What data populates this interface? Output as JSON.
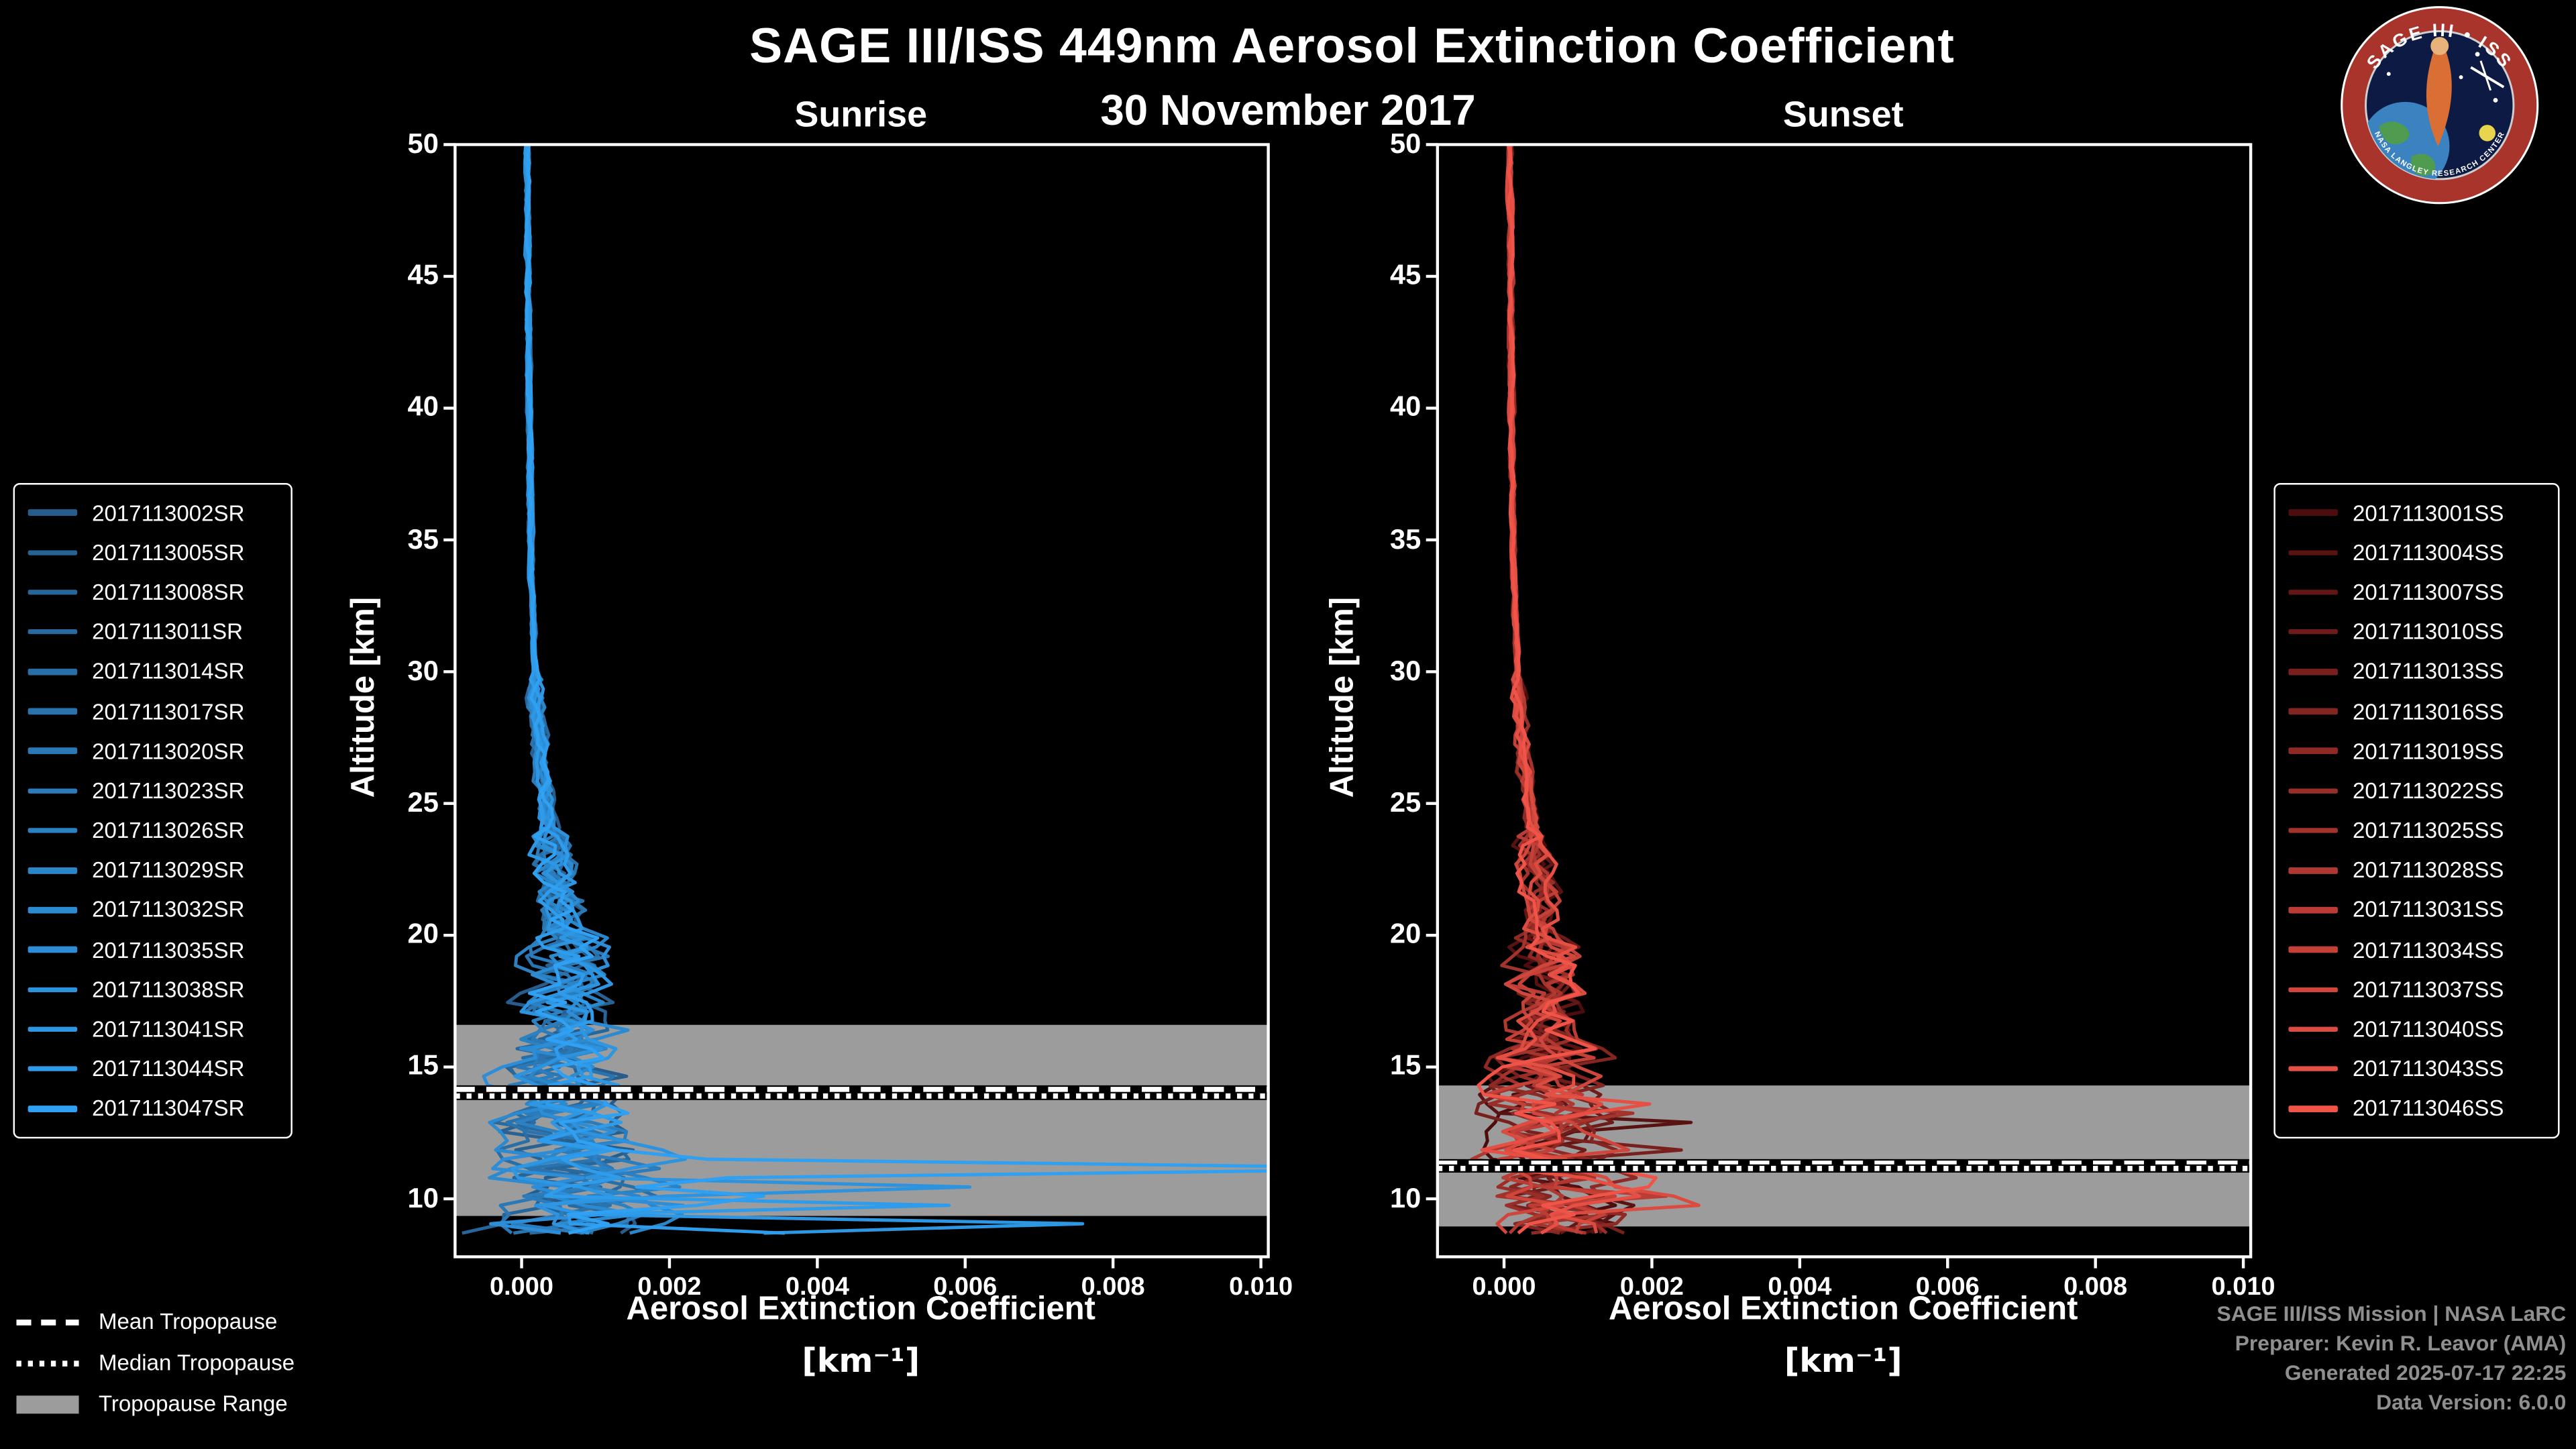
{
  "header": {
    "title": "SAGE III/ISS 449nm Aerosol Extinction Coefficient",
    "date": "30 November 2017"
  },
  "logo": {
    "title_text": "SAGE III • ISS",
    "subtitle_text": "NASA LANGLEY RESEARCH CENTER"
  },
  "footer": {
    "lines": [
      "SAGE III/ISS Mission | NASA LaRC",
      "Preparer: Kevin R. Leavor (AMA)",
      "Generated 2025-07-17 22:25",
      "Data Version: 6.0.0"
    ]
  },
  "tropopause_legend": [
    {
      "label": "Mean Tropopause",
      "style": "dashed"
    },
    {
      "label": "Median Tropopause",
      "style": "dotted"
    },
    {
      "label": "Tropopause Range",
      "style": "band"
    }
  ],
  "colors": {
    "background": "#000000",
    "text": "#ffffff",
    "footer_text": "#8f8f8f",
    "tropopause_band": "#9c9c9c"
  },
  "chart_data": [
    {
      "type": "line",
      "panel": "sunrise",
      "title": "Sunrise",
      "xlabel": "Aerosol Extinction Coefficient",
      "xlabel_units": "[km⁻¹]",
      "ylabel": "Altitude [km]",
      "xlim": [
        -0.0009,
        0.0101
      ],
      "ylim": [
        7.8,
        50
      ],
      "xticks": [
        0,
        0.002,
        0.004,
        0.006,
        0.008,
        0.01
      ],
      "xtick_labels": [
        "0.000",
        "0.002",
        "0.004",
        "0.006",
        "0.008",
        "0.010"
      ],
      "yticks": [
        10,
        15,
        20,
        25,
        30,
        35,
        40,
        45,
        50
      ],
      "ytick_labels": [
        "10",
        "15",
        "20",
        "25",
        "30",
        "35",
        "40",
        "45",
        "50"
      ],
      "grid": false,
      "legend_position": "outside-left",
      "tropopause": {
        "mean_km": 14.15,
        "median_km": 13.9,
        "range_km": [
          9.35,
          16.6
        ],
        "band_color": "#9c9c9c"
      },
      "profile_model": {
        "alt_top": 50,
        "alt_bottom": 8.4,
        "alt_step": 0.35,
        "min_value": -0.00085,
        "smooth": 0.55,
        "base_anchors": [
          [
            50,
            8e-05
          ],
          [
            40,
            0.0001
          ],
          [
            34,
            0.00013
          ],
          [
            30,
            0.00018
          ],
          [
            26,
            0.00028
          ],
          [
            23,
            0.0004
          ],
          [
            21,
            0.0005
          ],
          [
            19,
            0.0006
          ],
          [
            17,
            0.00055
          ],
          [
            15,
            0.0005
          ],
          [
            13,
            0.0006
          ],
          [
            11,
            0.0007
          ],
          [
            10,
            0.0008
          ],
          [
            9,
            0.0007
          ],
          [
            8.4,
            0.0005
          ]
        ],
        "noise_bands": [
          [
            30,
            5e-05
          ],
          [
            24,
            0.00018
          ],
          [
            20,
            0.0005
          ],
          [
            16,
            0.0009
          ],
          [
            12,
            0.0014
          ],
          [
            -99,
            0.0018
          ]
        ]
      },
      "series": [
        {
          "name": "2017113002SR",
          "color": "#265d8c",
          "seed": 7,
          "spikes": []
        },
        {
          "name": "2017113005SR",
          "color": "#276293",
          "seed": 12,
          "spikes": []
        },
        {
          "name": "2017113008SR",
          "color": "#27669a",
          "seed": 23,
          "spikes": []
        },
        {
          "name": "2017113011SR",
          "color": "#286aa0",
          "seed": 31,
          "spikes": [
            [
              19.0,
              0.0008
            ]
          ]
        },
        {
          "name": "2017113014SR",
          "color": "#286fa7",
          "seed": 44,
          "spikes": []
        },
        {
          "name": "2017113017SR",
          "color": "#2973ae",
          "seed": 5,
          "spikes": [
            [
              21.3,
              0.0005
            ]
          ]
        },
        {
          "name": "2017113020SR",
          "color": "#2a78b5",
          "seed": 16,
          "spikes": []
        },
        {
          "name": "2017113023SR",
          "color": "#2a7cbc",
          "seed": 27,
          "spikes": [
            [
              13.7,
              0.0011
            ]
          ]
        },
        {
          "name": "2017113026SR",
          "color": "#2b81c2",
          "seed": 38,
          "spikes": []
        },
        {
          "name": "2017113029SR",
          "color": "#2b85c9",
          "seed": 49,
          "spikes": [
            [
              12.3,
              0.0016
            ]
          ]
        },
        {
          "name": "2017113032SR",
          "color": "#2c8ad0",
          "seed": 52,
          "spikes": [
            [
              16.2,
              0.0009
            ]
          ]
        },
        {
          "name": "2017113035SR",
          "color": "#2d8ed7",
          "seed": 63,
          "spikes": [
            [
              9.6,
              0.0034
            ]
          ]
        },
        {
          "name": "2017113038SR",
          "color": "#2d93de",
          "seed": 74,
          "spikes": [
            [
              10.35,
              0.0055
            ]
          ]
        },
        {
          "name": "2017113041SR",
          "color": "#2e97e4",
          "seed": 85,
          "spikes": [
            [
              8.95,
              0.009
            ]
          ]
        },
        {
          "name": "2017113044SR",
          "color": "#2e9ceb",
          "seed": 96,
          "spikes": [
            [
              9.75,
              0.0052
            ],
            [
              8.55,
              0.0038
            ]
          ]
        },
        {
          "name": "2017113047SR",
          "color": "#2fa0f2",
          "seed": 107,
          "spikes": [
            [
              11.15,
              0.0115
            ],
            [
              10.0,
              0.003
            ]
          ]
        }
      ]
    },
    {
      "type": "line",
      "panel": "sunset",
      "title": "Sunset",
      "xlabel": "Aerosol Extinction Coefficient",
      "xlabel_units": "[km⁻¹]",
      "ylabel": "Altitude [km]",
      "xlim": [
        -0.0009,
        0.0101
      ],
      "ylim": [
        7.8,
        50
      ],
      "xticks": [
        0,
        0.002,
        0.004,
        0.006,
        0.008,
        0.01
      ],
      "xtick_labels": [
        "0.000",
        "0.002",
        "0.004",
        "0.006",
        "0.008",
        "0.010"
      ],
      "yticks": [
        10,
        15,
        20,
        25,
        30,
        35,
        40,
        45,
        50
      ],
      "ytick_labels": [
        "10",
        "15",
        "20",
        "25",
        "30",
        "35",
        "40",
        "45",
        "50"
      ],
      "grid": false,
      "legend_position": "outside-right",
      "tropopause": {
        "mean_km": 11.35,
        "median_km": 11.15,
        "range_km": [
          8.95,
          14.3
        ],
        "band_color": "#9c9c9c"
      },
      "profile_model": {
        "alt_top": 50,
        "alt_bottom": 8.5,
        "alt_step": 0.35,
        "min_value": -0.00085,
        "smooth": 0.55,
        "base_anchors": [
          [
            50,
            8e-05
          ],
          [
            40,
            0.0001
          ],
          [
            34,
            0.00013
          ],
          [
            30,
            0.00018
          ],
          [
            26,
            0.00028
          ],
          [
            23,
            0.0004
          ],
          [
            21,
            0.0005
          ],
          [
            19,
            0.0006
          ],
          [
            17,
            0.00055
          ],
          [
            15,
            0.0005
          ],
          [
            13,
            0.0006
          ],
          [
            11,
            0.0007
          ],
          [
            10,
            0.0008
          ],
          [
            9,
            0.0007
          ],
          [
            8.4,
            0.0005
          ]
        ],
        "noise_bands": [
          [
            30,
            5e-05
          ],
          [
            24,
            0.00015
          ],
          [
            20,
            0.0004
          ],
          [
            16,
            0.0008
          ],
          [
            12,
            0.0012
          ],
          [
            -99,
            0.0015
          ]
        ]
      },
      "series": [
        {
          "name": "2017113001SS",
          "color": "#4d0d0d",
          "seed": 9,
          "spikes": []
        },
        {
          "name": "2017113004SS",
          "color": "#581211",
          "seed": 18,
          "spikes": [
            [
              12.85,
              0.0022
            ]
          ]
        },
        {
          "name": "2017113007SS",
          "color": "#631615",
          "seed": 2,
          "spikes": [
            [
              13.4,
              0.0016
            ]
          ]
        },
        {
          "name": "2017113010SS",
          "color": "#6e1b19",
          "seed": 36,
          "spikes": []
        },
        {
          "name": "2017113013SS",
          "color": "#791f1d",
          "seed": 45,
          "spikes": [
            [
              11.8,
              0.0013
            ]
          ]
        },
        {
          "name": "2017113016SS",
          "color": "#832521",
          "seed": 54,
          "spikes": []
        },
        {
          "name": "2017113019SS",
          "color": "#8e2925",
          "seed": 6,
          "spikes": [
            [
              9.3,
              0.0016
            ]
          ]
        },
        {
          "name": "2017113022SS",
          "color": "#992e29",
          "seed": 72,
          "spikes": []
        },
        {
          "name": "2017113025SS",
          "color": "#a4332c",
          "seed": 81,
          "spikes": [
            [
              13.1,
              0.0012
            ]
          ]
        },
        {
          "name": "2017113028SS",
          "color": "#af3830",
          "seed": 90,
          "spikes": []
        },
        {
          "name": "2017113031SS",
          "color": "#ba3c34",
          "seed": 99,
          "spikes": [
            [
              10.15,
              0.0014
            ]
          ]
        },
        {
          "name": "2017113034SS",
          "color": "#c44138",
          "seed": 108,
          "spikes": []
        },
        {
          "name": "2017113037SS",
          "color": "#cf463c",
          "seed": 117,
          "spikes": [
            [
              12.0,
              0.0011
            ]
          ]
        },
        {
          "name": "2017113040SS",
          "color": "#da4b40",
          "seed": 13,
          "spikes": [
            [
              9.9,
              0.0012
            ]
          ]
        },
        {
          "name": "2017113043SS",
          "color": "#e54f44",
          "seed": 26,
          "spikes": [
            [
              13.55,
              0.0013
            ]
          ]
        },
        {
          "name": "2017113046SS",
          "color": "#f05448",
          "seed": 39,
          "spikes": [
            [
              10.7,
              0.0012
            ]
          ]
        }
      ]
    }
  ]
}
